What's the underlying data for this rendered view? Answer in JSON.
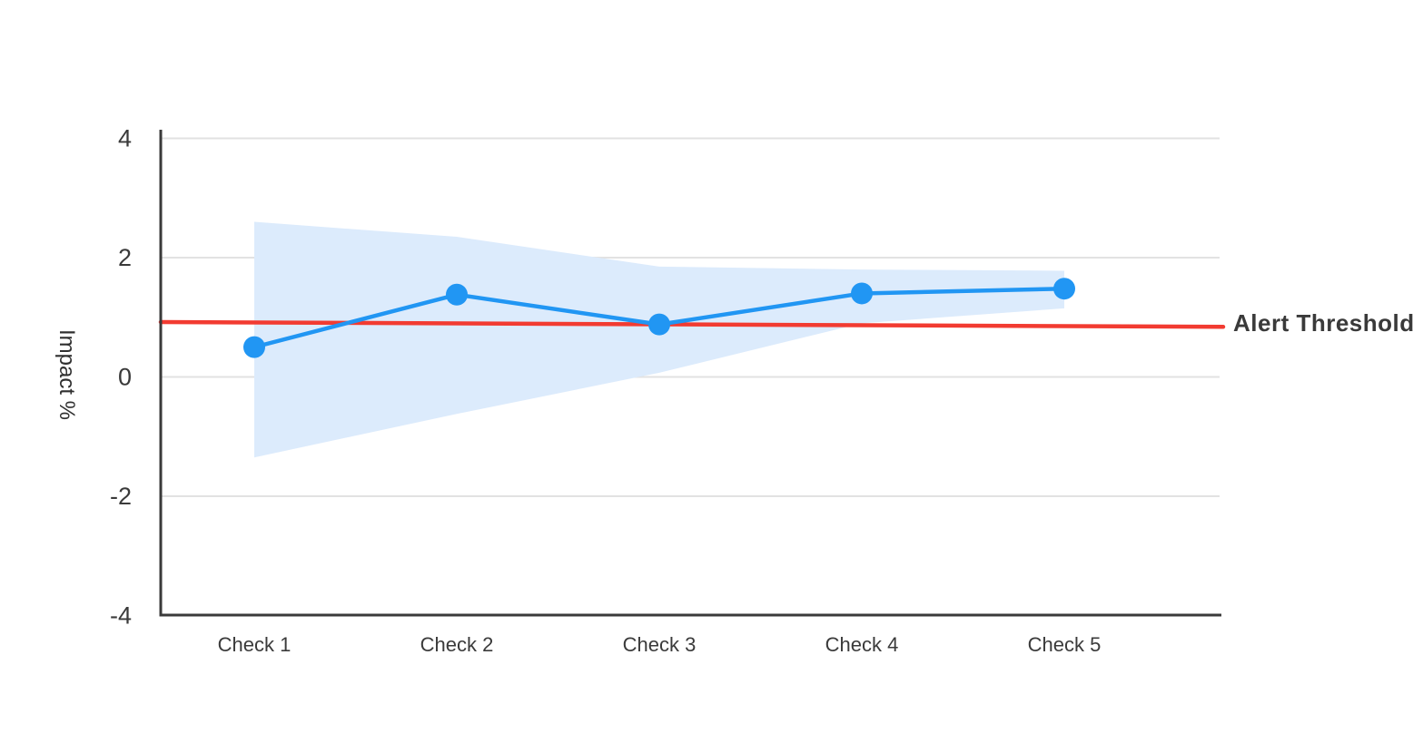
{
  "figure": {
    "background": "#ffffff",
    "y_axis_title": "Impact %",
    "threshold_label": "Alert Threshold"
  },
  "chart_data": {
    "type": "line",
    "title": "",
    "xlabel": "",
    "ylabel": "Impact %",
    "categories": [
      "Check 1",
      "Check 2",
      "Check 3",
      "Check 4",
      "Check 5"
    ],
    "series": [
      {
        "name": "Impact",
        "values": [
          0.5,
          1.38,
          0.88,
          1.4,
          1.48
        ]
      },
      {
        "name": "Confidence band upper",
        "values": [
          2.6,
          2.35,
          1.85,
          1.8,
          1.78
        ]
      },
      {
        "name": "Confidence band lower",
        "values": [
          -1.35,
          -0.62,
          0.07,
          0.9,
          1.15
        ]
      }
    ],
    "threshold": {
      "label": "Alert Threshold",
      "start_value": 0.92,
      "end_value": 0.84
    },
    "ylim": [
      -4,
      4
    ],
    "y_ticks": [
      "4",
      "2",
      "0",
      "-2",
      "-4"
    ],
    "y_tick_values": [
      4,
      2,
      0,
      -2,
      -4
    ],
    "grid": true,
    "legend_position": "none",
    "annotations": [
      "Alert Threshold"
    ]
  },
  "colors": {
    "line_blue": "#2196f3",
    "marker_blue": "#2196f3",
    "band_blue": "#dcebfc",
    "threshold_red": "#f23b31",
    "axis": "#3a3a3a",
    "grid": "#e2e2e2",
    "text": "#3a3a3a"
  }
}
